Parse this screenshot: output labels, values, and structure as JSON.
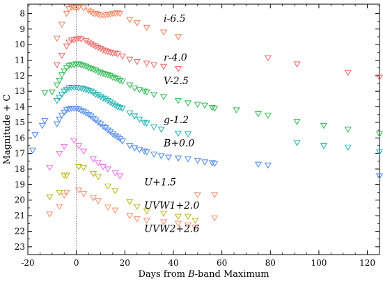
{
  "chart_data": {
    "type": "scatter",
    "title": "",
    "xlabel": {
      "prefix": "Days from ",
      "italic": "B",
      "suffix": "-band Maximum"
    },
    "ylabel": "Magnitude + C",
    "xlim": [
      -20,
      125
    ],
    "ylim": [
      23.5,
      7.4
    ],
    "x_ticks": [
      -20,
      0,
      20,
      40,
      60,
      80,
      100,
      120
    ],
    "y_ticks": [
      8,
      9,
      10,
      11,
      12,
      13,
      14,
      15,
      16,
      17,
      18,
      19,
      20,
      21,
      22,
      23
    ],
    "y_inverted": true,
    "reference_line_x": 0,
    "marker": "triangle-down",
    "series": [
      {
        "name": "i-6.5",
        "color": "#ee8a68",
        "points": [
          [
            -8,
            9.6
          ],
          [
            -6,
            8.7
          ],
          [
            -4,
            8.0
          ],
          [
            -3,
            7.7
          ],
          [
            -2,
            7.6
          ],
          [
            -1,
            7.6
          ],
          [
            0,
            7.65
          ],
          [
            1,
            7.6
          ],
          [
            3,
            7.65
          ],
          [
            5,
            7.8
          ],
          [
            6,
            7.9
          ],
          [
            7,
            8.0
          ],
          [
            8,
            8.0
          ],
          [
            9,
            8.05
          ],
          [
            10,
            8.1
          ],
          [
            11,
            8.1
          ],
          [
            12,
            8.1
          ],
          [
            13,
            8.05
          ],
          [
            14,
            8.05
          ],
          [
            15,
            8.0
          ],
          [
            16,
            8.0
          ],
          [
            17,
            7.95
          ],
          [
            18,
            8.0
          ],
          [
            22,
            8.4
          ],
          [
            25,
            8.6
          ],
          [
            29,
            8.9
          ],
          [
            36,
            9.2
          ],
          [
            42,
            9.5
          ]
        ]
      },
      {
        "name": "r-4.0",
        "color": "#ee7070",
        "points": [
          [
            -8,
            11.3
          ],
          [
            -6,
            10.7
          ],
          [
            -4,
            10.1
          ],
          [
            -3,
            9.85
          ],
          [
            -2,
            9.7
          ],
          [
            -1,
            9.7
          ],
          [
            0,
            9.65
          ],
          [
            1,
            9.6
          ],
          [
            2,
            9.65
          ],
          [
            4,
            9.75
          ],
          [
            5,
            9.85
          ],
          [
            6,
            9.95
          ],
          [
            7,
            10.05
          ],
          [
            8,
            10.1
          ],
          [
            9,
            10.2
          ],
          [
            10,
            10.25
          ],
          [
            11,
            10.35
          ],
          [
            12,
            10.4
          ],
          [
            13,
            10.45
          ],
          [
            14,
            10.5
          ],
          [
            15,
            10.55
          ],
          [
            16,
            10.55
          ],
          [
            17,
            10.6
          ],
          [
            19,
            10.75
          ],
          [
            22,
            10.95
          ],
          [
            25,
            11.1
          ],
          [
            29,
            11.2
          ],
          [
            32,
            11.3
          ],
          [
            36,
            11.4
          ],
          [
            42,
            11.55
          ],
          [
            79,
            10.85
          ],
          [
            91,
            11.25
          ],
          [
            112,
            11.8
          ],
          [
            125,
            12.1
          ]
        ]
      },
      {
        "name": "V-2.5",
        "color": "#3bbf5e",
        "points": [
          [
            -13,
            13.1
          ],
          [
            -10,
            13.05
          ],
          [
            -8,
            12.6
          ],
          [
            -7,
            12.3
          ],
          [
            -6,
            11.95
          ],
          [
            -5,
            11.7
          ],
          [
            -4,
            11.5
          ],
          [
            -3,
            11.35
          ],
          [
            -2,
            11.3
          ],
          [
            -1,
            11.3
          ],
          [
            0,
            11.25
          ],
          [
            1,
            11.25
          ],
          [
            2,
            11.3
          ],
          [
            3,
            11.35
          ],
          [
            4,
            11.4
          ],
          [
            5,
            11.5
          ],
          [
            6,
            11.55
          ],
          [
            7,
            11.6
          ],
          [
            8,
            11.65
          ],
          [
            9,
            11.75
          ],
          [
            10,
            11.8
          ],
          [
            11,
            11.85
          ],
          [
            12,
            11.9
          ],
          [
            13,
            11.95
          ],
          [
            14,
            12.0
          ],
          [
            15,
            12.1
          ],
          [
            16,
            12.15
          ],
          [
            17,
            12.2
          ],
          [
            18,
            12.3
          ],
          [
            19,
            12.35
          ],
          [
            22,
            12.6
          ],
          [
            24,
            12.8
          ],
          [
            26,
            12.9
          ],
          [
            28,
            13.0
          ],
          [
            29,
            13.05
          ],
          [
            32,
            13.2
          ],
          [
            36,
            13.35
          ],
          [
            42,
            13.6
          ],
          [
            46,
            13.75
          ],
          [
            50,
            13.85
          ],
          [
            53,
            13.9
          ],
          [
            56,
            14.05
          ],
          [
            57,
            14.1
          ],
          [
            66,
            14.2
          ],
          [
            75,
            14.45
          ],
          [
            79,
            14.55
          ],
          [
            91,
            14.95
          ],
          [
            102,
            15.2
          ],
          [
            112,
            15.45
          ],
          [
            125,
            15.75
          ]
        ]
      },
      {
        "name": "g-1.2",
        "color": "#27b3b3",
        "points": [
          [
            -8,
            13.6
          ],
          [
            -7,
            13.4
          ],
          [
            -6,
            13.2
          ],
          [
            -5,
            13.0
          ],
          [
            -4,
            12.9
          ],
          [
            -3,
            12.8
          ],
          [
            -2,
            12.75
          ],
          [
            -1,
            12.75
          ],
          [
            0,
            12.75
          ],
          [
            1,
            12.8
          ],
          [
            2,
            12.8
          ],
          [
            3,
            12.85
          ],
          [
            4,
            12.9
          ],
          [
            5,
            12.95
          ],
          [
            6,
            13.0
          ],
          [
            7,
            13.1
          ],
          [
            8,
            13.2
          ],
          [
            9,
            13.25
          ],
          [
            10,
            13.35
          ],
          [
            11,
            13.45
          ],
          [
            12,
            13.5
          ],
          [
            13,
            13.6
          ],
          [
            14,
            13.7
          ],
          [
            15,
            13.8
          ],
          [
            16,
            13.9
          ],
          [
            17,
            14.0
          ],
          [
            18,
            14.05
          ],
          [
            19,
            14.1
          ],
          [
            22,
            14.4
          ],
          [
            24,
            14.6
          ],
          [
            26,
            14.8
          ],
          [
            28,
            15.0
          ],
          [
            29,
            15.05
          ],
          [
            32,
            15.3
          ],
          [
            35,
            15.45
          ],
          [
            42,
            15.7
          ],
          [
            46,
            15.75
          ],
          [
            91,
            16.3
          ],
          [
            102,
            16.5
          ],
          [
            112,
            16.6
          ],
          [
            125,
            16.9
          ]
        ]
      },
      {
        "name": "B+0.0",
        "color": "#5b8fea",
        "points": [
          [
            -18,
            16.8
          ],
          [
            -17,
            15.8
          ],
          [
            -14,
            15.2
          ],
          [
            -13,
            14.9
          ],
          [
            -8,
            15.1
          ],
          [
            -7,
            14.8
          ],
          [
            -6,
            14.55
          ],
          [
            -5,
            14.35
          ],
          [
            -4,
            14.2
          ],
          [
            -3,
            14.15
          ],
          [
            -2,
            14.1
          ],
          [
            -1,
            14.1
          ],
          [
            0,
            14.1
          ],
          [
            1,
            14.15
          ],
          [
            2,
            14.25
          ],
          [
            3,
            14.3
          ],
          [
            4,
            14.4
          ],
          [
            5,
            14.5
          ],
          [
            6,
            14.6
          ],
          [
            7,
            14.75
          ],
          [
            8,
            14.85
          ],
          [
            9,
            15.0
          ],
          [
            10,
            15.1
          ],
          [
            11,
            15.25
          ],
          [
            12,
            15.35
          ],
          [
            13,
            15.5
          ],
          [
            14,
            15.6
          ],
          [
            15,
            15.75
          ],
          [
            16,
            15.85
          ],
          [
            17,
            15.95
          ],
          [
            18,
            16.05
          ],
          [
            19,
            16.2
          ],
          [
            22,
            16.5
          ],
          [
            24,
            16.65
          ],
          [
            26,
            16.75
          ],
          [
            28,
            16.85
          ],
          [
            29,
            16.9
          ],
          [
            32,
            17.05
          ],
          [
            35,
            17.15
          ],
          [
            38,
            17.25
          ],
          [
            42,
            17.3
          ],
          [
            46,
            17.35
          ],
          [
            50,
            17.45
          ],
          [
            53,
            17.55
          ],
          [
            56,
            17.6
          ],
          [
            57,
            17.65
          ],
          [
            75,
            17.7
          ],
          [
            79,
            17.75
          ],
          [
            125,
            18.45
          ]
        ]
      },
      {
        "name": "U+1.5",
        "color": "#ee77ee",
        "points": [
          [
            -11,
            17.9
          ],
          [
            -7,
            17.0
          ],
          [
            -5,
            16.55
          ],
          [
            -1,
            16.15
          ],
          [
            1,
            16.5
          ],
          [
            3,
            16.85
          ],
          [
            7,
            17.35
          ],
          [
            9,
            17.6
          ],
          [
            11,
            17.85
          ],
          [
            13,
            18.0
          ],
          [
            16,
            18.25
          ],
          [
            18,
            18.45
          ]
        ]
      },
      {
        "name": "UVW1+2.0",
        "color": "#bbbb22",
        "points": [
          [
            -11,
            19.8
          ],
          [
            -7,
            19.5
          ],
          [
            -5,
            18.4
          ],
          [
            -4,
            18.4
          ],
          [
            1,
            17.85
          ],
          [
            3,
            17.9
          ],
          [
            7,
            18.3
          ],
          [
            9,
            18.5
          ],
          [
            13,
            19.1
          ],
          [
            16,
            19.4
          ],
          [
            22,
            20.1
          ],
          [
            25,
            20.4
          ],
          [
            29,
            20.7
          ],
          [
            36,
            20.85
          ],
          [
            42,
            21.05
          ],
          [
            46,
            21.05
          ],
          [
            49,
            21.3
          ]
        ]
      },
      {
        "name": "UVW2+2.6",
        "color": "#f09a78",
        "points": [
          [
            -11,
            20.9
          ],
          [
            -7,
            20.4
          ],
          [
            -5,
            19.7
          ],
          [
            -4,
            19.5
          ],
          [
            1,
            19.35
          ],
          [
            3,
            19.6
          ],
          [
            7,
            19.85
          ],
          [
            9,
            20.05
          ],
          [
            13,
            20.45
          ],
          [
            16,
            20.65
          ],
          [
            22,
            21.0
          ],
          [
            25,
            21.2
          ],
          [
            29,
            21.3
          ],
          [
            36,
            21.4
          ],
          [
            42,
            21.5
          ],
          [
            46,
            21.6
          ],
          [
            49,
            21.75
          ],
          [
            50,
            19.65
          ],
          [
            57,
            19.65
          ],
          [
            57,
            21.15
          ]
        ]
      }
    ],
    "series_labels": [
      {
        "text": "i-6.5",
        "x": 36,
        "y": 8.55
      },
      {
        "text": "r-4.0",
        "x": 36,
        "y": 11.05
      },
      {
        "text": "V-2.5",
        "x": 36,
        "y": 12.55
      },
      {
        "text": "g-1.2",
        "x": 36,
        "y": 15.05
      },
      {
        "text": "B+0.0",
        "x": 36,
        "y": 16.55
      },
      {
        "text": "U+1.5",
        "x": 28,
        "y": 19.05
      },
      {
        "text": "UVW1+2.0",
        "x": 28,
        "y": 20.55
      },
      {
        "text": "UVW2+2.6",
        "x": 28,
        "y": 22.05
      }
    ]
  }
}
